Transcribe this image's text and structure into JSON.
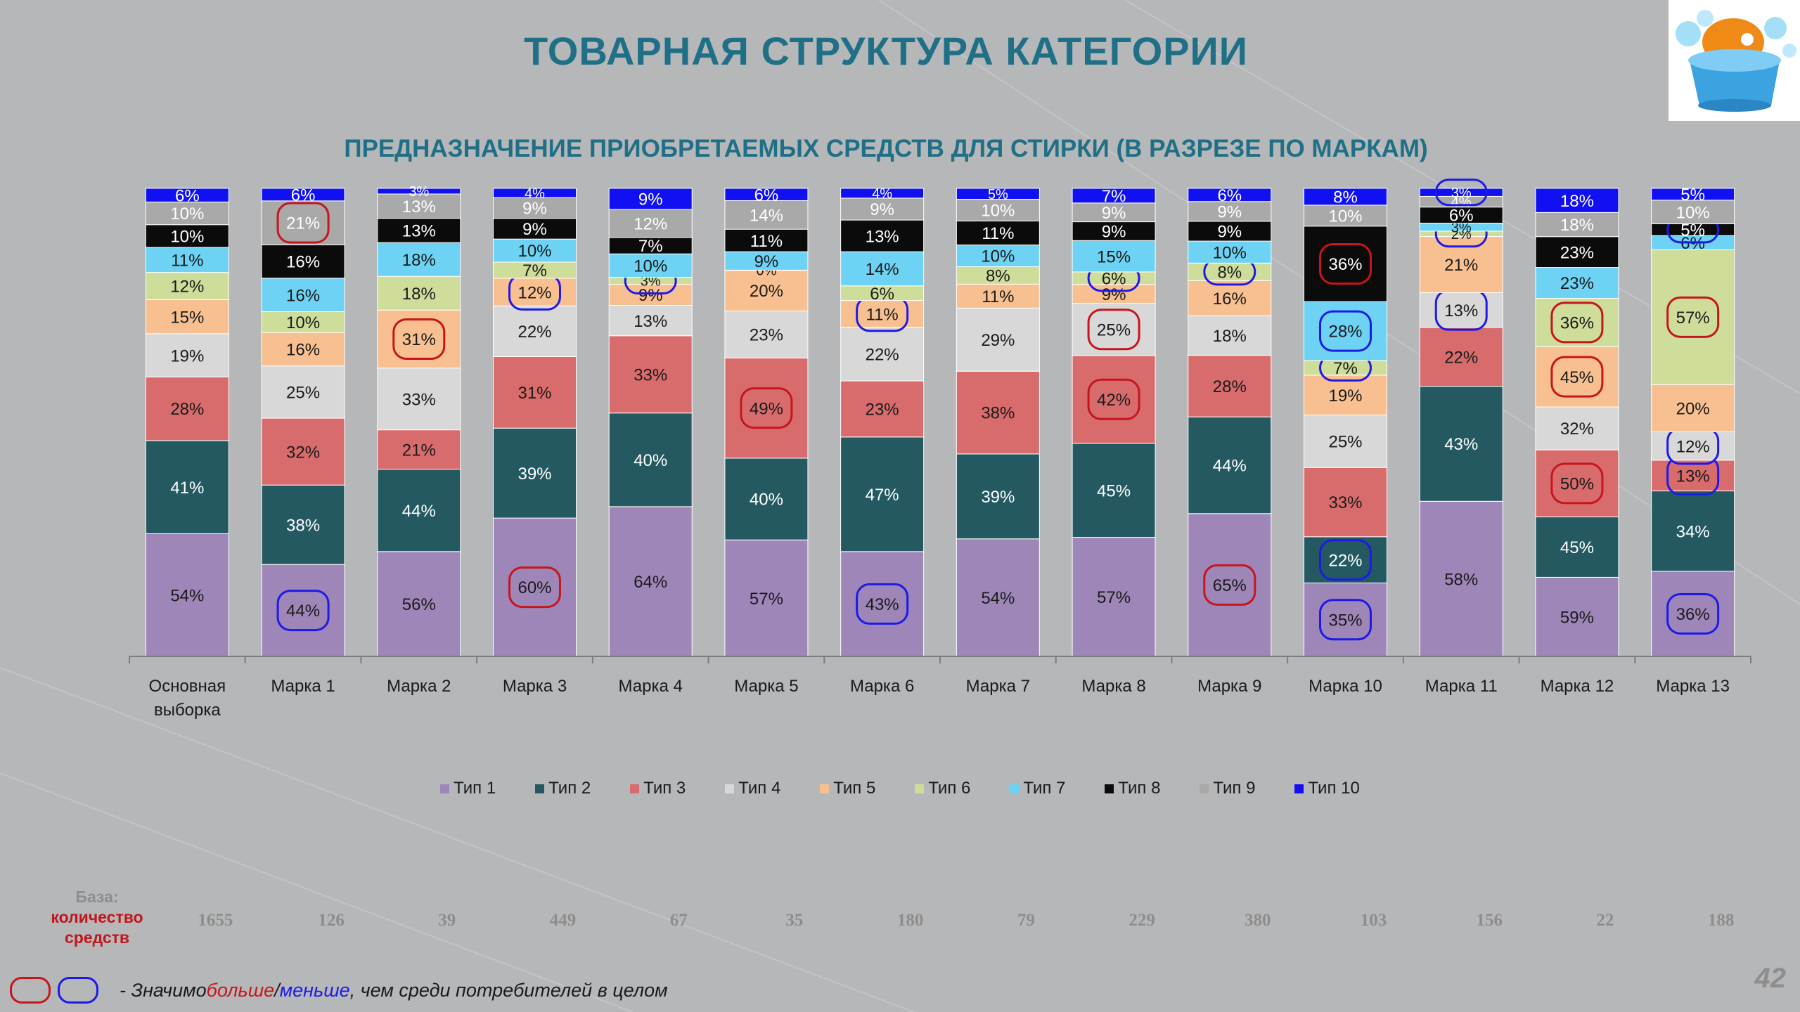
{
  "slide": {
    "title": "ТОВАРНАЯ СТРУКТУРА КАТЕГОРИИ",
    "subtitle": "ПРЕДНАЗНАЧЕНИЕ ПРИОБРЕТАЕМЫХ  СРЕДСТВ ДЛЯ СТИРКИ (В РАЗРЕЗЕ ПО МАРКАМ)",
    "page_number": "42"
  },
  "colors": {
    "background": "#b6b7b9",
    "title": "#1f7087",
    "significant_more": "#c7151b",
    "significant_less": "#1d1ae8"
  },
  "base": {
    "label_line1": "База:",
    "label_line2": "количество средств",
    "values": [
      "1655",
      "126",
      "39",
      "449",
      "67",
      "35",
      "180",
      "79",
      "229",
      "380",
      "103",
      "156",
      "22",
      "188"
    ]
  },
  "footnote": {
    "prefix": "- Значимо ",
    "more": "больше",
    "sep": " / ",
    "less": "меньше",
    "suffix": ", чем среди потребителей в целом"
  },
  "chart_data": {
    "type": "bar",
    "stacked": "percent",
    "categories": [
      "Основная выборка",
      "Марка 1",
      "Марка 2",
      "Марка 3",
      "Марка 4",
      "Марка 5",
      "Марка 6",
      "Марка 7",
      "Марка 8",
      "Марка 9",
      "Марка 10",
      "Марка 11",
      "Марка 12",
      "Марка 13"
    ],
    "series": [
      {
        "name": "Тип 1",
        "color": "#9f86b9",
        "label_color": "#1a1a1a",
        "values": [
          54,
          44,
          56,
          60,
          64,
          57,
          43,
          54,
          57,
          65,
          35,
          58,
          59,
          36
        ]
      },
      {
        "name": "Тип 2",
        "color": "#245962",
        "label_color": "#ffffff",
        "values": [
          41,
          38,
          44,
          39,
          40,
          40,
          47,
          39,
          45,
          44,
          22,
          43,
          45,
          34
        ]
      },
      {
        "name": "Тип 3",
        "color": "#d86c6d",
        "label_color": "#1a1a1a",
        "values": [
          28,
          32,
          21,
          31,
          33,
          49,
          23,
          38,
          42,
          28,
          33,
          22,
          50,
          13
        ]
      },
      {
        "name": "Тип 4",
        "color": "#d8d8d8",
        "label_color": "#1a1a1a",
        "values": [
          19,
          25,
          33,
          22,
          13,
          23,
          22,
          29,
          25,
          18,
          25,
          13,
          32,
          12
        ]
      },
      {
        "name": "Тип 5",
        "color": "#f8c090",
        "label_color": "#1a1a1a",
        "values": [
          15,
          16,
          31,
          12,
          9,
          20,
          11,
          11,
          9,
          16,
          19,
          21,
          45,
          20
        ]
      },
      {
        "name": "Тип 6",
        "color": "#cfdd9b",
        "label_color": "#1a1a1a",
        "values": [
          12,
          10,
          18,
          7,
          3,
          0,
          6,
          8,
          6,
          8,
          7,
          2,
          36,
          57
        ]
      },
      {
        "name": "Тип 7",
        "color": "#6dd2f4",
        "label_color": "#1a1a1a",
        "values": [
          11,
          16,
          18,
          10,
          10,
          9,
          14,
          10,
          15,
          10,
          28,
          3,
          23,
          6
        ]
      },
      {
        "name": "Тип 8",
        "color": "#0b0b0b",
        "label_color": "#ffffff",
        "values": [
          10,
          16,
          13,
          9,
          7,
          11,
          13,
          11,
          9,
          9,
          36,
          6,
          23,
          5
        ]
      },
      {
        "name": "Тип 9",
        "color": "#a9a9a9",
        "label_color": "#ffffff",
        "values": [
          10,
          21,
          13,
          9,
          12,
          14,
          9,
          10,
          9,
          9,
          10,
          4,
          18,
          10
        ]
      },
      {
        "name": "Тип 10",
        "color": "#1010f2",
        "label_color": "#ffffff",
        "values": [
          6,
          6,
          3,
          4,
          9,
          6,
          4,
          5,
          7,
          6,
          8,
          3,
          18,
          5
        ]
      }
    ],
    "highlights": [
      {
        "category": 1,
        "series": 0,
        "kind": "less"
      },
      {
        "category": 1,
        "series": 8,
        "kind": "more"
      },
      {
        "category": 2,
        "series": 4,
        "kind": "more"
      },
      {
        "category": 3,
        "series": 0,
        "kind": "more"
      },
      {
        "category": 3,
        "series": 4,
        "kind": "less"
      },
      {
        "category": 4,
        "series": 5,
        "kind": "less"
      },
      {
        "category": 5,
        "series": 2,
        "kind": "more"
      },
      {
        "category": 6,
        "series": 0,
        "kind": "less"
      },
      {
        "category": 6,
        "series": 4,
        "kind": "less"
      },
      {
        "category": 8,
        "series": 2,
        "kind": "more"
      },
      {
        "category": 8,
        "series": 3,
        "kind": "more"
      },
      {
        "category": 8,
        "series": 5,
        "kind": "less"
      },
      {
        "category": 9,
        "series": 0,
        "kind": "more"
      },
      {
        "category": 9,
        "series": 5,
        "kind": "less"
      },
      {
        "category": 10,
        "series": 0,
        "kind": "less"
      },
      {
        "category": 10,
        "series": 1,
        "kind": "less"
      },
      {
        "category": 10,
        "series": 5,
        "kind": "less"
      },
      {
        "category": 10,
        "series": 6,
        "kind": "less"
      },
      {
        "category": 10,
        "series": 7,
        "kind": "more"
      },
      {
        "category": 11,
        "series": 3,
        "kind": "less"
      },
      {
        "category": 11,
        "series": 5,
        "kind": "less"
      },
      {
        "category": 11,
        "series": 9,
        "kind": "less"
      },
      {
        "category": 12,
        "series": 2,
        "kind": "more"
      },
      {
        "category": 12,
        "series": 4,
        "kind": "more"
      },
      {
        "category": 12,
        "series": 5,
        "kind": "more"
      },
      {
        "category": 13,
        "series": 0,
        "kind": "less"
      },
      {
        "category": 13,
        "series": 2,
        "kind": "less"
      },
      {
        "category": 13,
        "series": 3,
        "kind": "less"
      },
      {
        "category": 13,
        "series": 5,
        "kind": "more"
      },
      {
        "category": 13,
        "series": 7,
        "kind": "less"
      }
    ],
    "legend_position": "bottom",
    "grid": false
  }
}
